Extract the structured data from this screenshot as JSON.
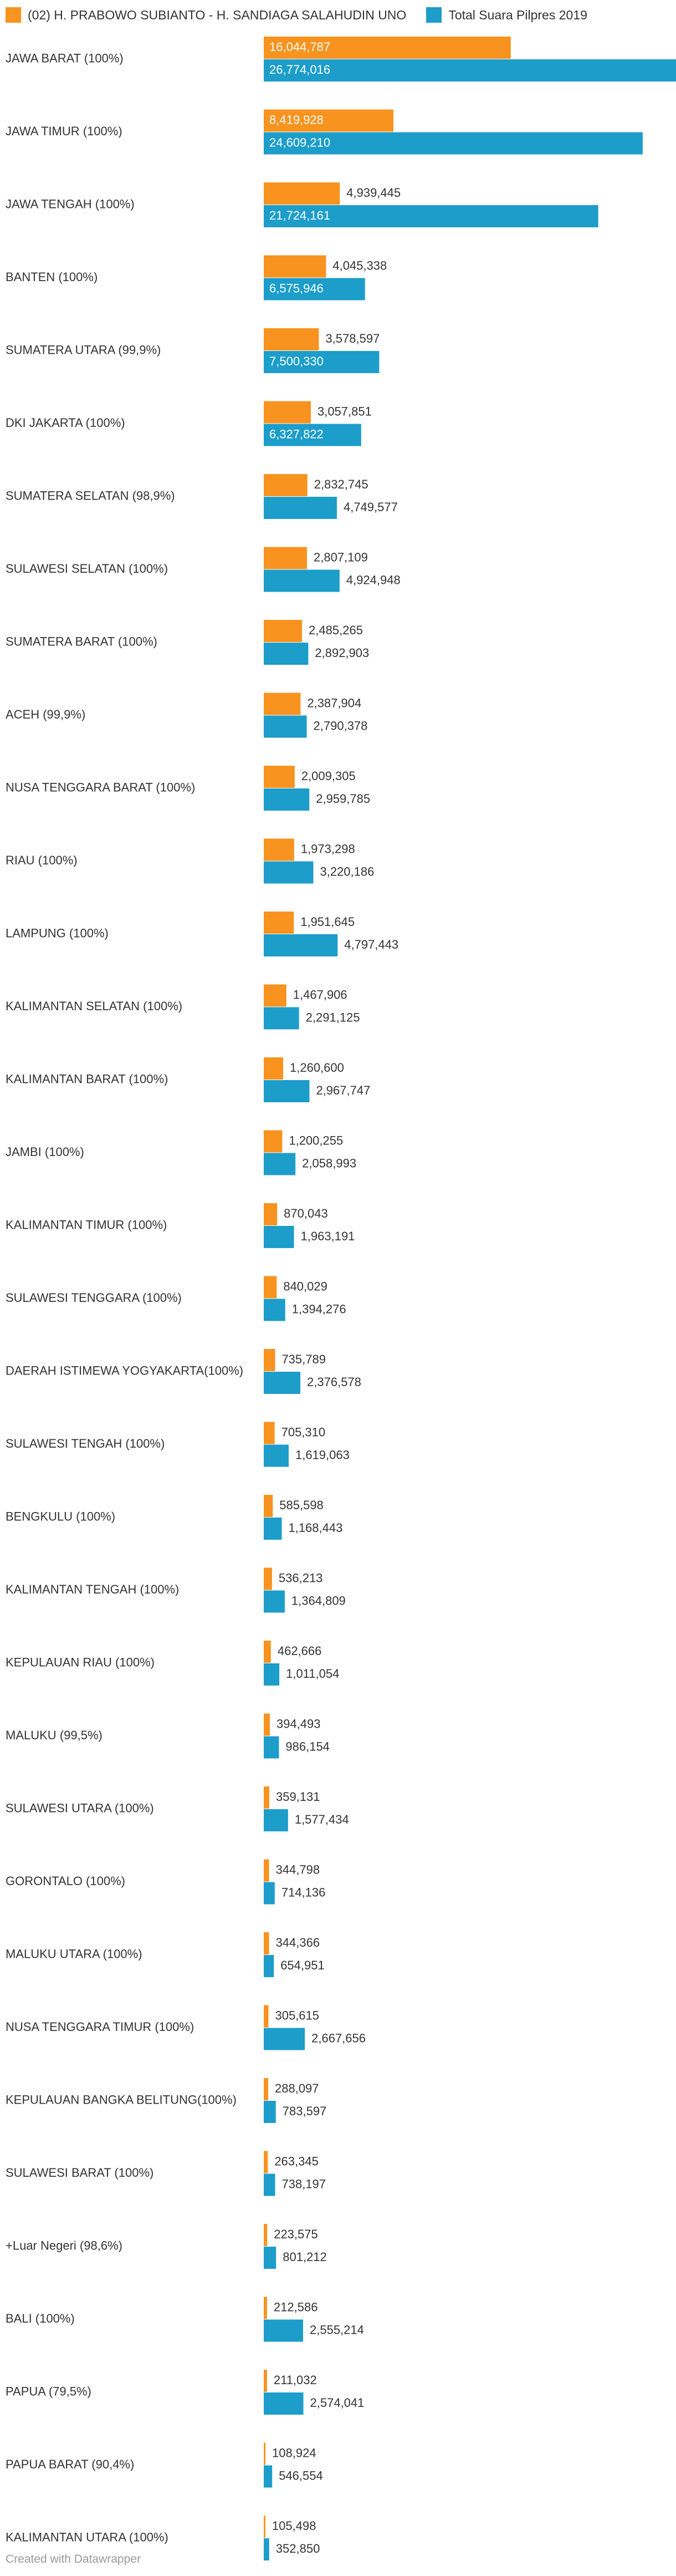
{
  "legend": {
    "series0": "(02) H. PRABOWO SUBIANTO - H. SANDIAGA SALAHUDIN UNO",
    "series1": "Total Suara Pilpres 2019"
  },
  "footer": "Created with Datawrapper",
  "colors": {
    "series0": "#f7931e",
    "series1": "#1c9dca",
    "text": "#333333",
    "label_inside": "#ffffff"
  },
  "chart_data": {
    "type": "bar",
    "orientation": "horizontal",
    "xlim": [
      0,
      26774016
    ],
    "categories": [
      "JAWA BARAT (100%)",
      "JAWA TIMUR (100%)",
      "JAWA TENGAH (100%)",
      "BANTEN (100%)",
      "SUMATERA UTARA (99,9%)",
      "DKI JAKARTA (100%)",
      "SUMATERA SELATAN (98,9%)",
      "SULAWESI SELATAN (100%)",
      "SUMATERA BARAT (100%)",
      "ACEH (99,9%)",
      "NUSA TENGGARA BARAT (100%)",
      "RIAU (100%)",
      "LAMPUNG (100%)",
      "KALIMANTAN SELATAN (100%)",
      "KALIMANTAN BARAT (100%)",
      "JAMBI (100%)",
      "KALIMANTAN TIMUR (100%)",
      "SULAWESI TENGGARA (100%)",
      "DAERAH ISTIMEWA YOGYAKARTA(100%)",
      "SULAWESI TENGAH (100%)",
      "BENGKULU (100%)",
      "KALIMANTAN TENGAH (100%)",
      "KEPULAUAN RIAU (100%)",
      "MALUKU (99,5%)",
      "SULAWESI UTARA (100%)",
      "GORONTALO (100%)",
      "MALUKU UTARA (100%)",
      "NUSA TENGGARA TIMUR (100%)",
      "KEPULAUAN BANGKA BELITUNG(100%)",
      "SULAWESI BARAT (100%)",
      "+Luar Negeri (98,6%)",
      "BALI (100%)",
      "PAPUA (79,5%)",
      "PAPUA BARAT (90,4%)",
      "KALIMANTAN UTARA (100%)"
    ],
    "series": [
      {
        "name": "(02) H. PRABOWO SUBIANTO - H. SANDIAGA SALAHUDIN UNO",
        "values": [
          16044787,
          8419928,
          4939445,
          4045338,
          3578597,
          3057851,
          2832745,
          2807109,
          2485265,
          2387904,
          2009305,
          1973298,
          1951645,
          1467906,
          1260600,
          1200255,
          870043,
          840029,
          735789,
          705310,
          585598,
          536213,
          462666,
          394493,
          359131,
          344798,
          344366,
          305615,
          288097,
          263345,
          223575,
          212586,
          211032,
          108924,
          105498
        ],
        "labels": [
          "16,044,787",
          "8,419,928",
          "4,939,445",
          "4,045,338",
          "3,578,597",
          "3,057,851",
          "2,832,745",
          "2,807,109",
          "2,485,265",
          "2,387,904",
          "2,009,305",
          "1,973,298",
          "1,951,645",
          "1,467,906",
          "1,260,600",
          "1,200,255",
          "870,043",
          "840,029",
          "735,789",
          "705,310",
          "585,598",
          "536,213",
          "462,666",
          "394,493",
          "359,131",
          "344,798",
          "344,366",
          "305,615",
          "288,097",
          "263,345",
          "223,575",
          "212,586",
          "211,032",
          "108,924",
          "105,498"
        ]
      },
      {
        "name": "Total Suara Pilpres 2019",
        "values": [
          26774016,
          24609210,
          21724161,
          6575946,
          7500330,
          6327822,
          4749577,
          4924948,
          2892903,
          2790378,
          2959785,
          3220186,
          4797443,
          2291125,
          2967747,
          2058993,
          1963191,
          1394276,
          2376578,
          1619063,
          1168443,
          1364809,
          1011054,
          986154,
          1577434,
          714136,
          654951,
          2667656,
          783597,
          738197,
          801212,
          2555214,
          2574041,
          546554,
          352850
        ],
        "labels": [
          "26,774,016",
          "24,609,210",
          "21,724,161",
          "6,575,946",
          "7,500,330",
          "6,327,822",
          "4,749,577",
          "4,924,948",
          "2,892,903",
          "2,790,378",
          "2,959,785",
          "3,220,186",
          "4,797,443",
          "2,291,125",
          "2,967,747",
          "2,058,993",
          "1,963,191",
          "1,394,276",
          "2,376,578",
          "1,619,063",
          "1,168,443",
          "1,364,809",
          "1,011,054",
          "986,154",
          "1,577,434",
          "714,136",
          "654,951",
          "2,667,656",
          "783,597",
          "738,197",
          "801,212",
          "2,555,214",
          "2,574,041",
          "546,554",
          "352,850"
        ]
      }
    ]
  }
}
